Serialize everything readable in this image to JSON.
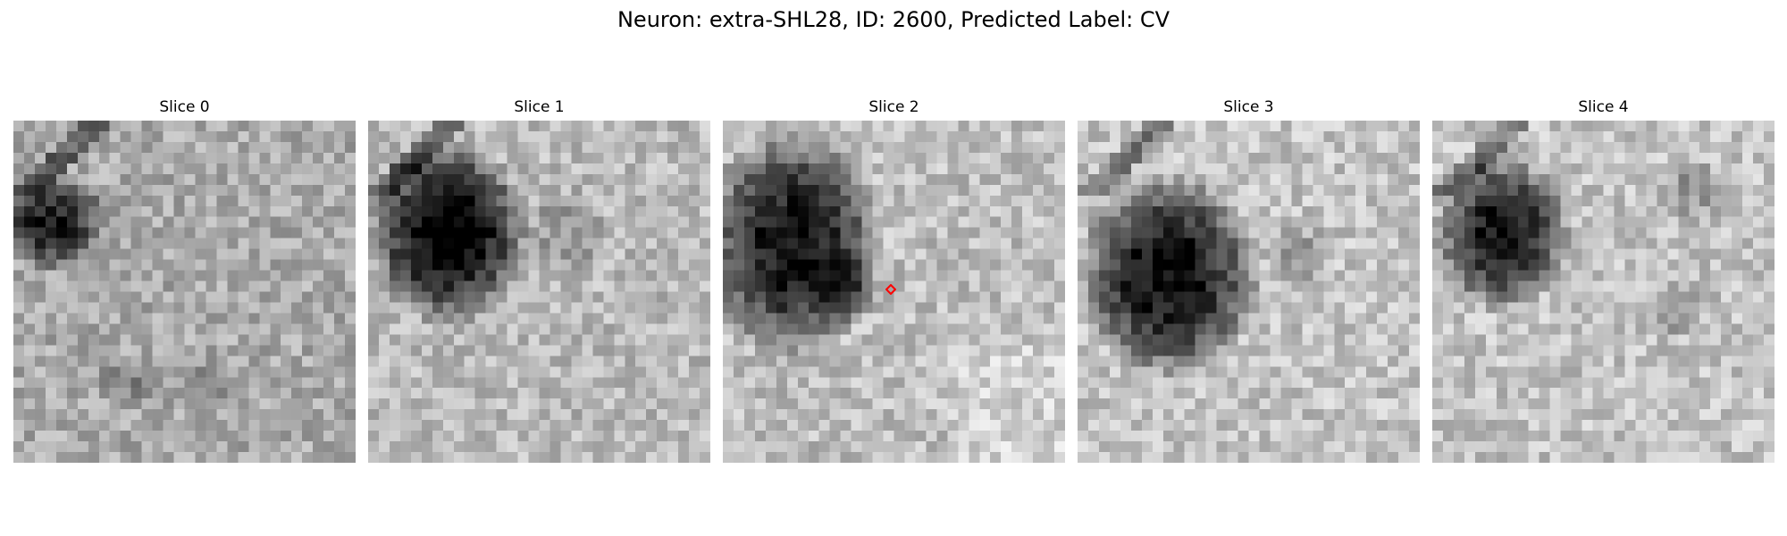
{
  "figure": {
    "title": "Neuron: extra-SHL28, ID: 2600, Predicted Label: CV"
  },
  "slices": [
    {
      "title": "Slice 0"
    },
    {
      "title": "Slice 1"
    },
    {
      "title": "Slice 2"
    },
    {
      "title": "Slice 3"
    },
    {
      "title": "Slice 4"
    }
  ],
  "marker": {
    "color": "#ff0000",
    "slice_index": 2
  },
  "colormap": "gray"
}
